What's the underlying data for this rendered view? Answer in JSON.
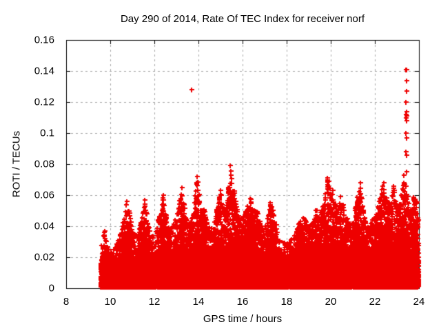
{
  "chart_data": {
    "type": "scatter",
    "title": "Day 290 of 2014, Rate Of TEC Index for receiver norf",
    "xlabel": "GPS time / hours",
    "ylabel": "ROTI / TECUs",
    "xlim": [
      8,
      24
    ],
    "ylim": [
      0,
      0.16
    ],
    "xticks": [
      8,
      10,
      12,
      14,
      16,
      18,
      20,
      22,
      24
    ],
    "xtick_labels": [
      "8",
      "10",
      "12",
      "14",
      "16",
      "18",
      "20",
      "22",
      "24"
    ],
    "yticks": [
      0,
      0.02,
      0.04,
      0.06,
      0.08,
      0.1,
      0.12,
      0.14,
      0.16
    ],
    "ytick_labels": [
      "0",
      "0.02",
      "0.04",
      "0.06",
      "0.08",
      "0.1",
      "0.12",
      "0.14",
      "0.16"
    ],
    "grid": true,
    "legend": "none",
    "marker": "plus",
    "marker_size_px": 7,
    "colors": {
      "marker": "#ee0000",
      "grid": "#a8a8a8",
      "axis": "#000000",
      "text": "#000000",
      "background": "#ffffff"
    },
    "data_time_range": [
      9.55,
      23.98
    ],
    "baseline_band": [
      0.001,
      0.02
    ],
    "envelope": [
      [
        9.55,
        0.02
      ],
      [
        9.63,
        0.032
      ],
      [
        9.75,
        0.037
      ],
      [
        9.85,
        0.028
      ],
      [
        10.0,
        0.024
      ],
      [
        10.2,
        0.026
      ],
      [
        10.4,
        0.032
      ],
      [
        10.6,
        0.044
      ],
      [
        10.75,
        0.056
      ],
      [
        10.9,
        0.048
      ],
      [
        11.05,
        0.036
      ],
      [
        11.2,
        0.034
      ],
      [
        11.4,
        0.044
      ],
      [
        11.55,
        0.057
      ],
      [
        11.7,
        0.042
      ],
      [
        11.85,
        0.034
      ],
      [
        12.0,
        0.036
      ],
      [
        12.15,
        0.044
      ],
      [
        12.3,
        0.052
      ],
      [
        12.4,
        0.06
      ],
      [
        12.55,
        0.046
      ],
      [
        12.7,
        0.038
      ],
      [
        12.85,
        0.04
      ],
      [
        13.0,
        0.048
      ],
      [
        13.15,
        0.058
      ],
      [
        13.25,
        0.065
      ],
      [
        13.4,
        0.048
      ],
      [
        13.55,
        0.04
      ],
      [
        13.7,
        0.046
      ],
      [
        13.85,
        0.06
      ],
      [
        13.95,
        0.072
      ],
      [
        14.1,
        0.05
      ],
      [
        14.25,
        0.052
      ],
      [
        14.4,
        0.044
      ],
      [
        14.55,
        0.038
      ],
      [
        14.7,
        0.044
      ],
      [
        14.85,
        0.052
      ],
      [
        15.0,
        0.063
      ],
      [
        15.15,
        0.05
      ],
      [
        15.3,
        0.058
      ],
      [
        15.45,
        0.079
      ],
      [
        15.6,
        0.064
      ],
      [
        15.75,
        0.052
      ],
      [
        15.9,
        0.044
      ],
      [
        16.05,
        0.048
      ],
      [
        16.2,
        0.052
      ],
      [
        16.35,
        0.058
      ],
      [
        16.5,
        0.05
      ],
      [
        16.65,
        0.052
      ],
      [
        16.8,
        0.042
      ],
      [
        16.95,
        0.038
      ],
      [
        17.1,
        0.044
      ],
      [
        17.25,
        0.055
      ],
      [
        17.4,
        0.05
      ],
      [
        17.55,
        0.038
      ],
      [
        17.7,
        0.032
      ],
      [
        17.85,
        0.03
      ],
      [
        18.0,
        0.029
      ],
      [
        18.15,
        0.031
      ],
      [
        18.3,
        0.034
      ],
      [
        18.45,
        0.038
      ],
      [
        18.6,
        0.044
      ],
      [
        18.75,
        0.048
      ],
      [
        18.9,
        0.042
      ],
      [
        19.05,
        0.04
      ],
      [
        19.2,
        0.046
      ],
      [
        19.35,
        0.052
      ],
      [
        19.5,
        0.048
      ],
      [
        19.65,
        0.054
      ],
      [
        19.85,
        0.071
      ],
      [
        20.0,
        0.065
      ],
      [
        20.15,
        0.056
      ],
      [
        20.3,
        0.05
      ],
      [
        20.45,
        0.059
      ],
      [
        20.6,
        0.052
      ],
      [
        20.75,
        0.046
      ],
      [
        20.9,
        0.042
      ],
      [
        21.05,
        0.048
      ],
      [
        21.2,
        0.06
      ],
      [
        21.35,
        0.068
      ],
      [
        21.5,
        0.047
      ],
      [
        21.65,
        0.04
      ],
      [
        21.8,
        0.042
      ],
      [
        21.95,
        0.046
      ],
      [
        22.1,
        0.052
      ],
      [
        22.25,
        0.06
      ],
      [
        22.4,
        0.068
      ],
      [
        22.55,
        0.058
      ],
      [
        22.7,
        0.052
      ],
      [
        22.85,
        0.066
      ],
      [
        23.0,
        0.052
      ],
      [
        23.15,
        0.056
      ],
      [
        23.3,
        0.073
      ],
      [
        23.45,
        0.062
      ],
      [
        23.6,
        0.05
      ],
      [
        23.75,
        0.06
      ],
      [
        23.9,
        0.056
      ],
      [
        23.98,
        0.042
      ]
    ],
    "peaks": [
      [
        9.75,
        0.037
      ],
      [
        10.75,
        0.056
      ],
      [
        11.55,
        0.057
      ],
      [
        12.4,
        0.06
      ],
      [
        13.25,
        0.065
      ],
      [
        13.95,
        0.072
      ],
      [
        15.0,
        0.063
      ],
      [
        15.45,
        0.079
      ],
      [
        16.35,
        0.058
      ],
      [
        17.25,
        0.055
      ],
      [
        19.85,
        0.071
      ],
      [
        20.1,
        0.063
      ],
      [
        20.45,
        0.059
      ],
      [
        21.35,
        0.068
      ],
      [
        22.4,
        0.068
      ],
      [
        22.85,
        0.066
      ],
      [
        23.3,
        0.073
      ]
    ],
    "outliers": [
      [
        13.7,
        0.128
      ],
      [
        23.42,
        0.141
      ],
      [
        23.44,
        0.141
      ],
      [
        23.43,
        0.134
      ],
      [
        23.44,
        0.127
      ],
      [
        23.42,
        0.12
      ],
      [
        23.45,
        0.114
      ],
      [
        23.42,
        0.112
      ],
      [
        23.43,
        0.111
      ],
      [
        23.42,
        0.11
      ],
      [
        23.44,
        0.108
      ],
      [
        23.42,
        0.1
      ],
      [
        23.45,
        0.097
      ],
      [
        23.41,
        0.088
      ],
      [
        23.43,
        0.086
      ],
      [
        23.44,
        0.075
      ]
    ]
  }
}
